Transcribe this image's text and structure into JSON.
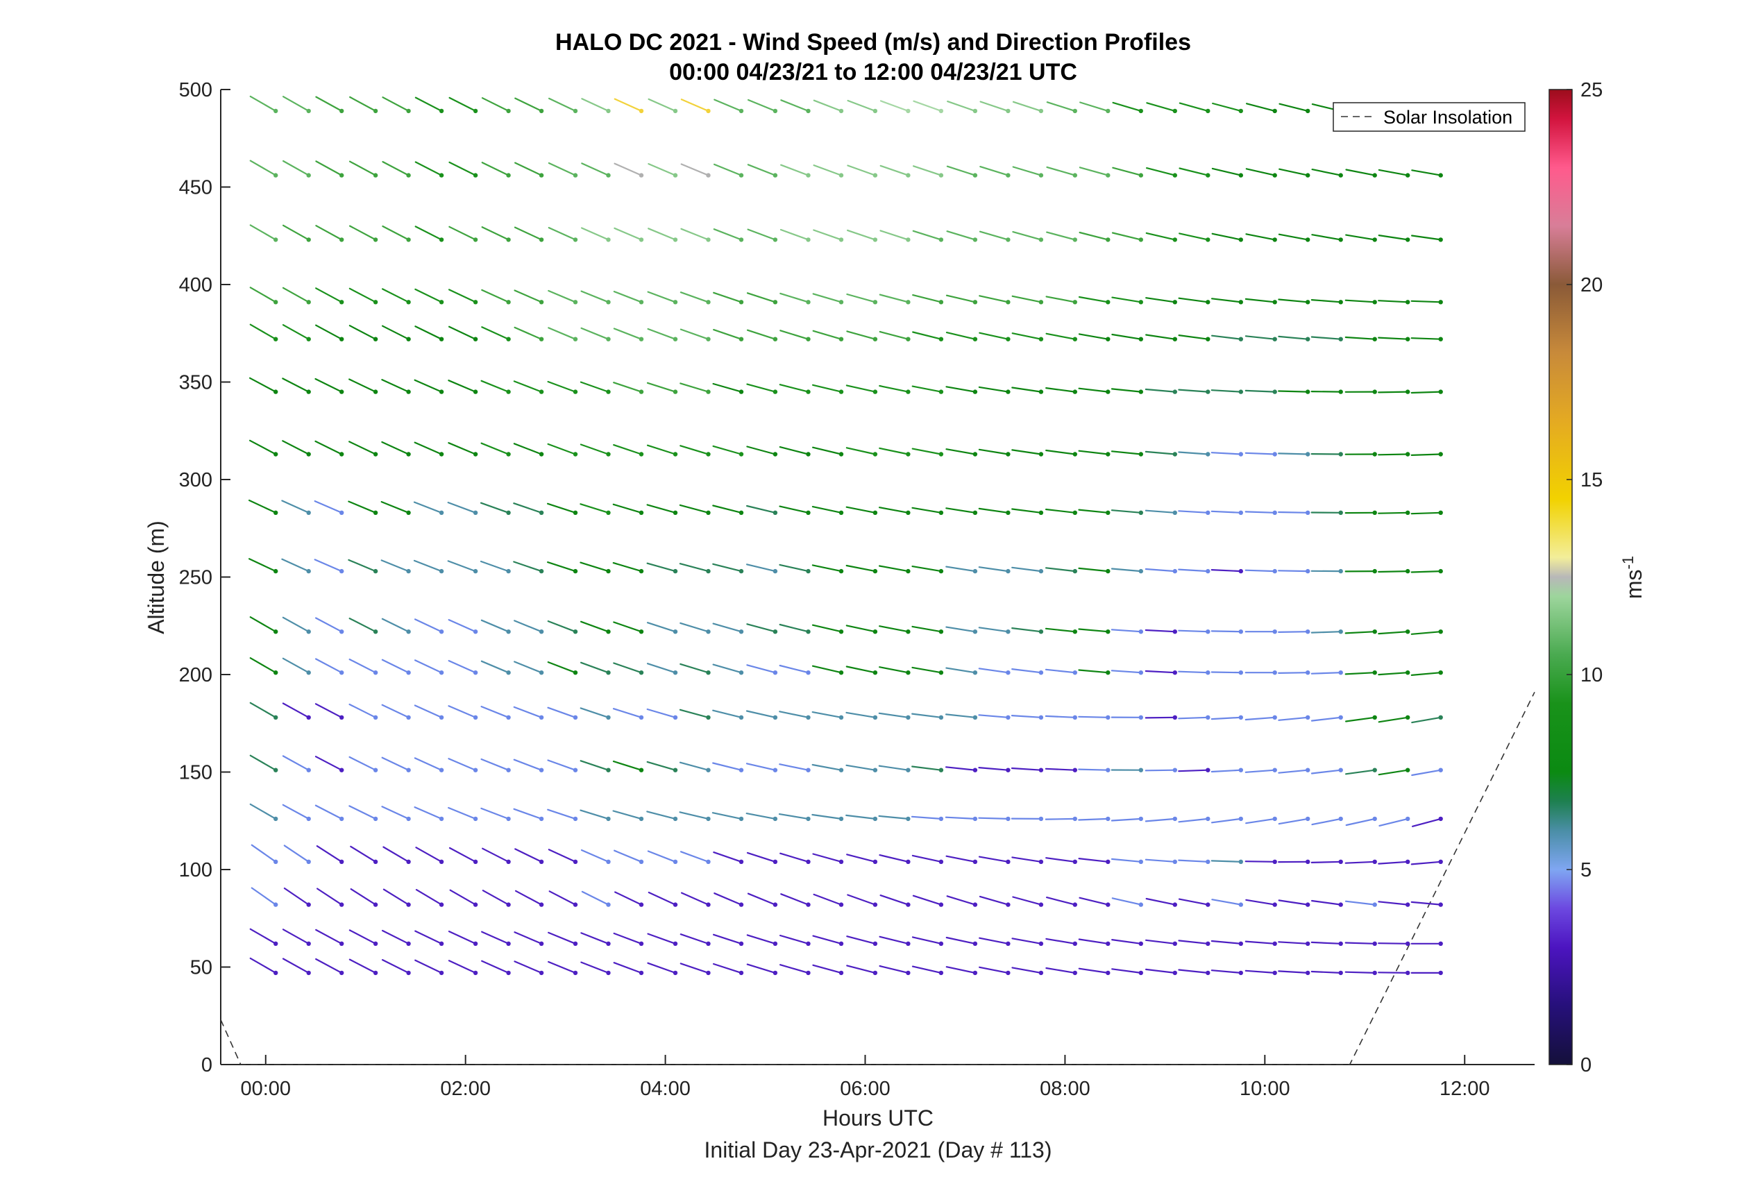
{
  "chart_data": {
    "type": "wind-barb-profile",
    "title_line1": "HALO DC 2021 - Wind Speed (m/s) and Direction Profiles",
    "title_line2": "00:00 04/23/21 to 12:00 04/23/21  UTC",
    "xlabel": "Hours UTC",
    "xlabel_sub": "Initial Day 23-Apr-2021 (Day # 113)",
    "ylabel": "Altitude (m)",
    "xlim_hours": [
      -0.45,
      12.7
    ],
    "ylim": [
      0,
      500
    ],
    "x_ticks": [
      {
        "value": 0,
        "label": "00:00"
      },
      {
        "value": 2,
        "label": "02:00"
      },
      {
        "value": 4,
        "label": "04:00"
      },
      {
        "value": 6,
        "label": "06:00"
      },
      {
        "value": 8,
        "label": "08:00"
      },
      {
        "value": 10,
        "label": "10:00"
      },
      {
        "value": 12,
        "label": "12:00"
      }
    ],
    "y_ticks": [
      {
        "value": 0,
        "label": "0"
      },
      {
        "value": 50,
        "label": "50"
      },
      {
        "value": 100,
        "label": "100"
      },
      {
        "value": 150,
        "label": "150"
      },
      {
        "value": 200,
        "label": "200"
      },
      {
        "value": 250,
        "label": "250"
      },
      {
        "value": 300,
        "label": "300"
      },
      {
        "value": 350,
        "label": "350"
      },
      {
        "value": 400,
        "label": "400"
      },
      {
        "value": 450,
        "label": "450"
      },
      {
        "value": 500,
        "label": "500"
      }
    ],
    "colorbar": {
      "label": "ms",
      "label_exponent": "-1",
      "range": [
        0,
        25
      ],
      "ticks": [
        {
          "value": 0,
          "label": "0"
        },
        {
          "value": 5,
          "label": "5"
        },
        {
          "value": 10,
          "label": "10"
        },
        {
          "value": 15,
          "label": "15"
        },
        {
          "value": 20,
          "label": "20"
        },
        {
          "value": 25,
          "label": "25"
        }
      ]
    },
    "legend": {
      "label": "Solar Insolation",
      "placement": "top-right"
    },
    "solar_insolation": {
      "style": "dashed",
      "points": [
        [
          -0.45,
          23
        ],
        [
          -0.25,
          0
        ],
        [
          10.85,
          0
        ],
        [
          12.7,
          191
        ]
      ]
    },
    "wind_profiles": {
      "times_hours": [
        0.1,
        0.43,
        0.76,
        1.1,
        1.43,
        1.76,
        2.1,
        2.43,
        2.76,
        3.1,
        3.43,
        3.76,
        4.1,
        4.43,
        4.76,
        5.1,
        5.43,
        5.76,
        6.1,
        6.43,
        6.76,
        7.1,
        7.43,
        7.76,
        8.1,
        8.43,
        8.76,
        9.1,
        9.43,
        9.76,
        10.1,
        10.43,
        10.76,
        11.1,
        11.43,
        11.76
      ],
      "altitudes_m": [
        47,
        62,
        82,
        104,
        126,
        151,
        178,
        201,
        222,
        253,
        283,
        313,
        345,
        372,
        391,
        423,
        456,
        489
      ],
      "direction_rows": [
        {
          "altitude": 47,
          "start_deg": 300,
          "end_deg": 270
        },
        {
          "altitude": 62,
          "start_deg": 300,
          "end_deg": 270
        },
        {
          "altitude": 82,
          "start_deg": 305,
          "end_deg": 275
        },
        {
          "altitude": 104,
          "start_deg": 305,
          "end_deg": 265
        },
        {
          "altitude": 126,
          "start_deg": 300,
          "end_deg": 255
        },
        {
          "altitude": 151,
          "start_deg": 300,
          "end_deg": 260
        },
        {
          "altitude": 178,
          "start_deg": 300,
          "end_deg": 260
        },
        {
          "altitude": 201,
          "start_deg": 300,
          "end_deg": 265
        },
        {
          "altitude": 222,
          "start_deg": 300,
          "end_deg": 265
        },
        {
          "altitude": 253,
          "start_deg": 295,
          "end_deg": 268
        },
        {
          "altitude": 283,
          "start_deg": 295,
          "end_deg": 268
        },
        {
          "altitude": 313,
          "start_deg": 298,
          "end_deg": 268
        },
        {
          "altitude": 345,
          "start_deg": 298,
          "end_deg": 268
        },
        {
          "altitude": 372,
          "start_deg": 300,
          "end_deg": 272
        },
        {
          "altitude": 391,
          "start_deg": 300,
          "end_deg": 272
        },
        {
          "altitude": 423,
          "start_deg": 300,
          "end_deg": 278
        },
        {
          "altitude": 456,
          "start_deg": 300,
          "end_deg": 280
        },
        {
          "altitude": 489,
          "start_deg": 300,
          "end_deg": 282
        }
      ],
      "speed_rows": [
        {
          "altitude": 47,
          "speeds": [
            3,
            3,
            3,
            3,
            3,
            3,
            3,
            3,
            3,
            3,
            3,
            3,
            3,
            3,
            3,
            3,
            3,
            3,
            3,
            3,
            3,
            3,
            3,
            3,
            3,
            3,
            3,
            3,
            3,
            3,
            3,
            3,
            3,
            3,
            3,
            3
          ]
        },
        {
          "altitude": 62,
          "speeds": [
            3,
            3,
            3,
            3,
            3,
            3,
            3,
            3,
            3,
            3,
            3,
            3,
            3,
            3,
            3,
            3,
            3,
            3,
            3,
            3,
            3,
            3,
            3,
            3,
            3,
            3,
            3,
            3,
            3,
            3,
            3,
            3,
            3,
            3,
            3,
            3
          ]
        },
        {
          "altitude": 82,
          "speeds": [
            4,
            3,
            3,
            3,
            3,
            3,
            3,
            3,
            3,
            3,
            4,
            3,
            3,
            3,
            3,
            3,
            3,
            3,
            3,
            3,
            3,
            3,
            3,
            3,
            3,
            3,
            4,
            3,
            3,
            4,
            3,
            3,
            3,
            4,
            3,
            3
          ]
        },
        {
          "altitude": 104,
          "speeds": [
            4,
            4,
            3,
            3,
            3,
            3,
            3,
            3,
            3,
            3,
            4,
            4,
            4,
            4,
            3,
            3,
            3,
            3,
            3,
            3,
            3,
            3,
            3,
            3,
            3,
            3,
            4,
            4,
            4,
            5,
            3,
            3,
            3,
            3,
            3,
            3
          ]
        },
        {
          "altitude": 126,
          "speeds": [
            5,
            4,
            4,
            4,
            4,
            4,
            4,
            4,
            4,
            4,
            5,
            5,
            5,
            5,
            5,
            5,
            5,
            5,
            5,
            5,
            4,
            4,
            4,
            4,
            4,
            4,
            4,
            4,
            4,
            4,
            4,
            4,
            4,
            4,
            4,
            3
          ]
        },
        {
          "altitude": 151,
          "speeds": [
            6,
            4,
            3,
            4,
            4,
            4,
            4,
            4,
            4,
            4,
            6,
            7,
            6,
            5,
            4,
            4,
            4,
            5,
            5,
            5,
            6,
            3,
            3,
            3,
            3,
            4,
            5,
            4,
            3,
            4,
            4,
            4,
            4,
            6,
            7,
            4
          ]
        },
        {
          "altitude": 178,
          "speeds": [
            6,
            3,
            3,
            4,
            4,
            4,
            4,
            4,
            4,
            4,
            5,
            4,
            4,
            6,
            5,
            5,
            5,
            5,
            5,
            5,
            5,
            5,
            4,
            4,
            4,
            4,
            4,
            3,
            4,
            4,
            4,
            4,
            4,
            7,
            7,
            6
          ]
        },
        {
          "altitude": 201,
          "speeds": [
            7,
            5,
            4,
            4,
            4,
            4,
            4,
            5,
            5,
            7,
            6,
            6,
            5,
            6,
            5,
            4,
            4,
            7,
            7,
            7,
            7,
            5,
            4,
            4,
            4,
            7,
            4,
            3,
            4,
            4,
            4,
            4,
            4,
            7,
            7,
            7
          ]
        },
        {
          "altitude": 222,
          "speeds": [
            7,
            5,
            4,
            6,
            5,
            4,
            4,
            5,
            5,
            6,
            7,
            7,
            5,
            5,
            5,
            6,
            6,
            7,
            7,
            7,
            7,
            5,
            5,
            6,
            7,
            7,
            4,
            3,
            4,
            4,
            4,
            4,
            5,
            7,
            7,
            7
          ]
        },
        {
          "altitude": 253,
          "speeds": [
            7,
            5,
            4,
            6,
            5,
            5,
            5,
            5,
            6,
            7,
            7,
            7,
            6,
            6,
            6,
            5,
            6,
            7,
            7,
            7,
            7,
            5,
            5,
            5,
            6,
            7,
            5,
            4,
            4,
            3,
            4,
            4,
            5,
            7,
            7,
            7
          ]
        },
        {
          "altitude": 283,
          "speeds": [
            7,
            5,
            4,
            7,
            7,
            5,
            5,
            6,
            6,
            7,
            8,
            7,
            7,
            7,
            7,
            6,
            7,
            7,
            7,
            7,
            7,
            7,
            7,
            7,
            7,
            7,
            6,
            5,
            4,
            4,
            4,
            4,
            6,
            7,
            7,
            7
          ]
        },
        {
          "altitude": 313,
          "speeds": [
            7,
            7,
            7,
            7,
            7,
            7,
            7,
            8,
            7,
            8,
            8,
            8,
            8,
            8,
            8,
            7,
            7,
            7,
            8,
            8,
            8,
            7,
            7,
            7,
            7,
            7,
            7,
            6,
            5,
            4,
            4,
            5,
            6,
            7,
            7,
            7
          ]
        },
        {
          "altitude": 345,
          "speeds": [
            7,
            7,
            7,
            7,
            7,
            7,
            7,
            8,
            8,
            8,
            8,
            9,
            9,
            9,
            7,
            8,
            8,
            8,
            8,
            8,
            8,
            7,
            7,
            7,
            7,
            7,
            7,
            6,
            6,
            6,
            6,
            7,
            7,
            7,
            7,
            7
          ]
        },
        {
          "altitude": 372,
          "speeds": [
            8,
            8,
            7,
            7,
            7,
            7,
            7,
            8,
            9,
            10,
            10,
            10,
            10,
            10,
            9,
            9,
            9,
            9,
            9,
            9,
            8,
            8,
            8,
            8,
            8,
            7,
            7,
            7,
            7,
            6,
            6,
            6,
            6,
            7,
            7,
            7
          ]
        },
        {
          "altitude": 391,
          "speeds": [
            9,
            9,
            8,
            8,
            8,
            8,
            8,
            9,
            9,
            10,
            10,
            10,
            10,
            10,
            9,
            9,
            10,
            10,
            10,
            10,
            9,
            9,
            9,
            9,
            9,
            8,
            8,
            7,
            7,
            7,
            7,
            7,
            7,
            7,
            7,
            7
          ]
        },
        {
          "altitude": 423,
          "speeds": [
            10,
            9,
            9,
            9,
            9,
            8,
            9,
            9,
            9,
            10,
            11,
            11,
            11,
            11,
            10,
            10,
            11,
            11,
            11,
            11,
            10,
            10,
            10,
            10,
            10,
            9,
            9,
            8,
            8,
            7,
            7,
            7,
            7,
            7,
            7,
            7
          ]
        },
        {
          "altitude": 456,
          "speeds": [
            10,
            10,
            9,
            9,
            9,
            8,
            8,
            9,
            9,
            10,
            10,
            13,
            11,
            13,
            10,
            10,
            11,
            11,
            11,
            11,
            11,
            10,
            10,
            10,
            10,
            10,
            9,
            8,
            8,
            7,
            7,
            7,
            7,
            7,
            7,
            7
          ]
        },
        {
          "altitude": 489,
          "speeds": [
            10,
            10,
            9,
            9,
            9,
            8,
            8,
            9,
            9,
            10,
            11,
            14,
            11,
            14,
            10,
            10,
            10,
            11,
            11,
            12,
            12,
            11,
            11,
            11,
            10,
            10,
            8,
            8,
            8,
            8,
            7,
            7,
            7,
            7,
            7,
            7
          ]
        }
      ]
    }
  }
}
